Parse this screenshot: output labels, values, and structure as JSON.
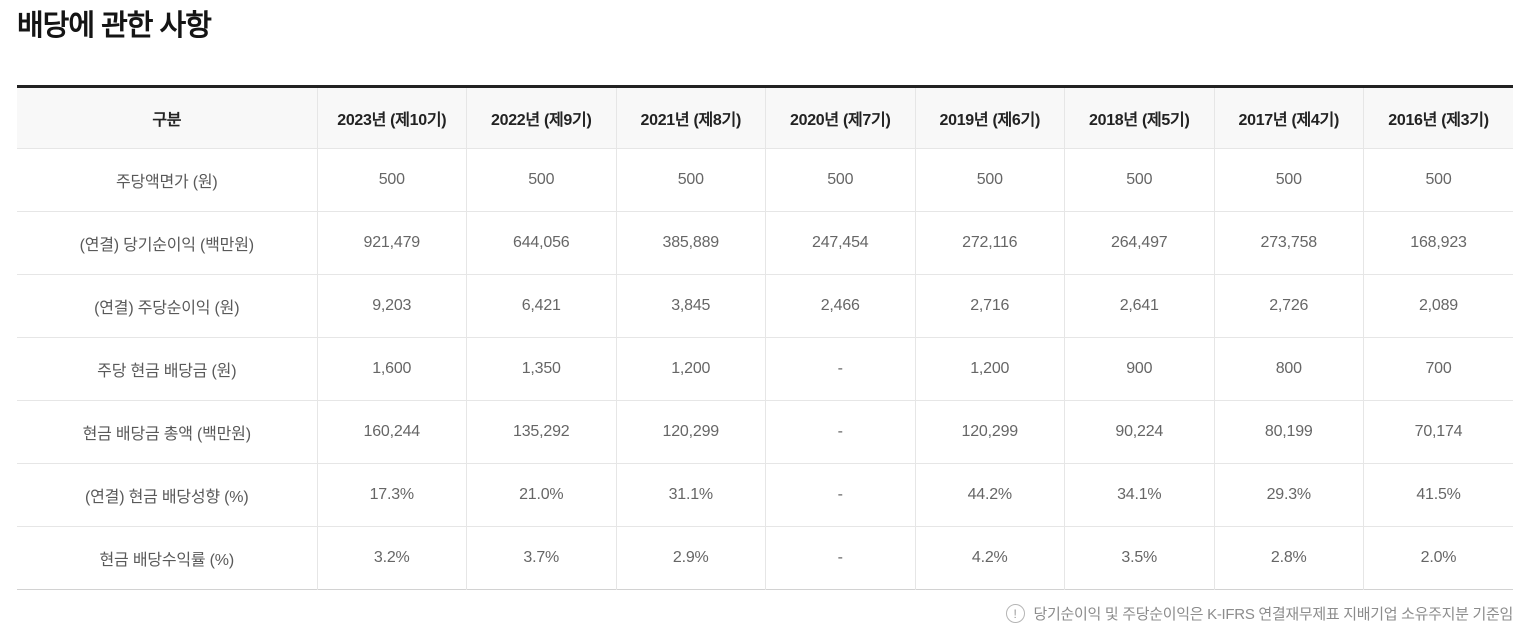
{
  "page_title": "배당에 관한 사항",
  "table": {
    "columns": [
      "구분",
      "2023년 (제10기)",
      "2022년 (제9기)",
      "2021년 (제8기)",
      "2020년 (제7기)",
      "2019년 (제6기)",
      "2018년 (제5기)",
      "2017년 (제4기)",
      "2016년 (제3기)"
    ],
    "rows": [
      {
        "label": "주당액면가 (원)",
        "values": [
          "500",
          "500",
          "500",
          "500",
          "500",
          "500",
          "500",
          "500"
        ]
      },
      {
        "label": "(연결) 당기순이익 (백만원)",
        "values": [
          "921,479",
          "644,056",
          "385,889",
          "247,454",
          "272,116",
          "264,497",
          "273,758",
          "168,923"
        ]
      },
      {
        "label": "(연결) 주당순이익 (원)",
        "values": [
          "9,203",
          "6,421",
          "3,845",
          "2,466",
          "2,716",
          "2,641",
          "2,726",
          "2,089"
        ]
      },
      {
        "label": "주당 현금 배당금 (원)",
        "values": [
          "1,600",
          "1,350",
          "1,200",
          "-",
          "1,200",
          "900",
          "800",
          "700"
        ]
      },
      {
        "label": "현금 배당금 총액 (백만원)",
        "values": [
          "160,244",
          "135,292",
          "120,299",
          "-",
          "120,299",
          "90,224",
          "80,199",
          "70,174"
        ]
      },
      {
        "label": "(연결) 현금 배당성향 (%)",
        "values": [
          "17.3%",
          "21.0%",
          "31.1%",
          "-",
          "44.2%",
          "34.1%",
          "29.3%",
          "41.5%"
        ]
      },
      {
        "label": "현금 배당수익률 (%)",
        "values": [
          "3.2%",
          "3.7%",
          "2.9%",
          "-",
          "4.2%",
          "3.5%",
          "2.8%",
          "2.0%"
        ]
      }
    ]
  },
  "footnote": {
    "icon": "exclamation-circle-icon",
    "icon_glyph": "!",
    "text": "당기순이익 및 주당순이익은 K-IFRS 연결재무제표 지배기업 소유주지분 기준임"
  },
  "colors": {
    "title_text": "#141414",
    "table_top_border": "#222222",
    "table_bottom_border": "#d2d2d2",
    "header_background": "#f8f8f8",
    "header_text": "#222222",
    "cell_border": "#e6e6e6",
    "cell_text": "#666666",
    "footnote_text": "#8c8c8c"
  }
}
